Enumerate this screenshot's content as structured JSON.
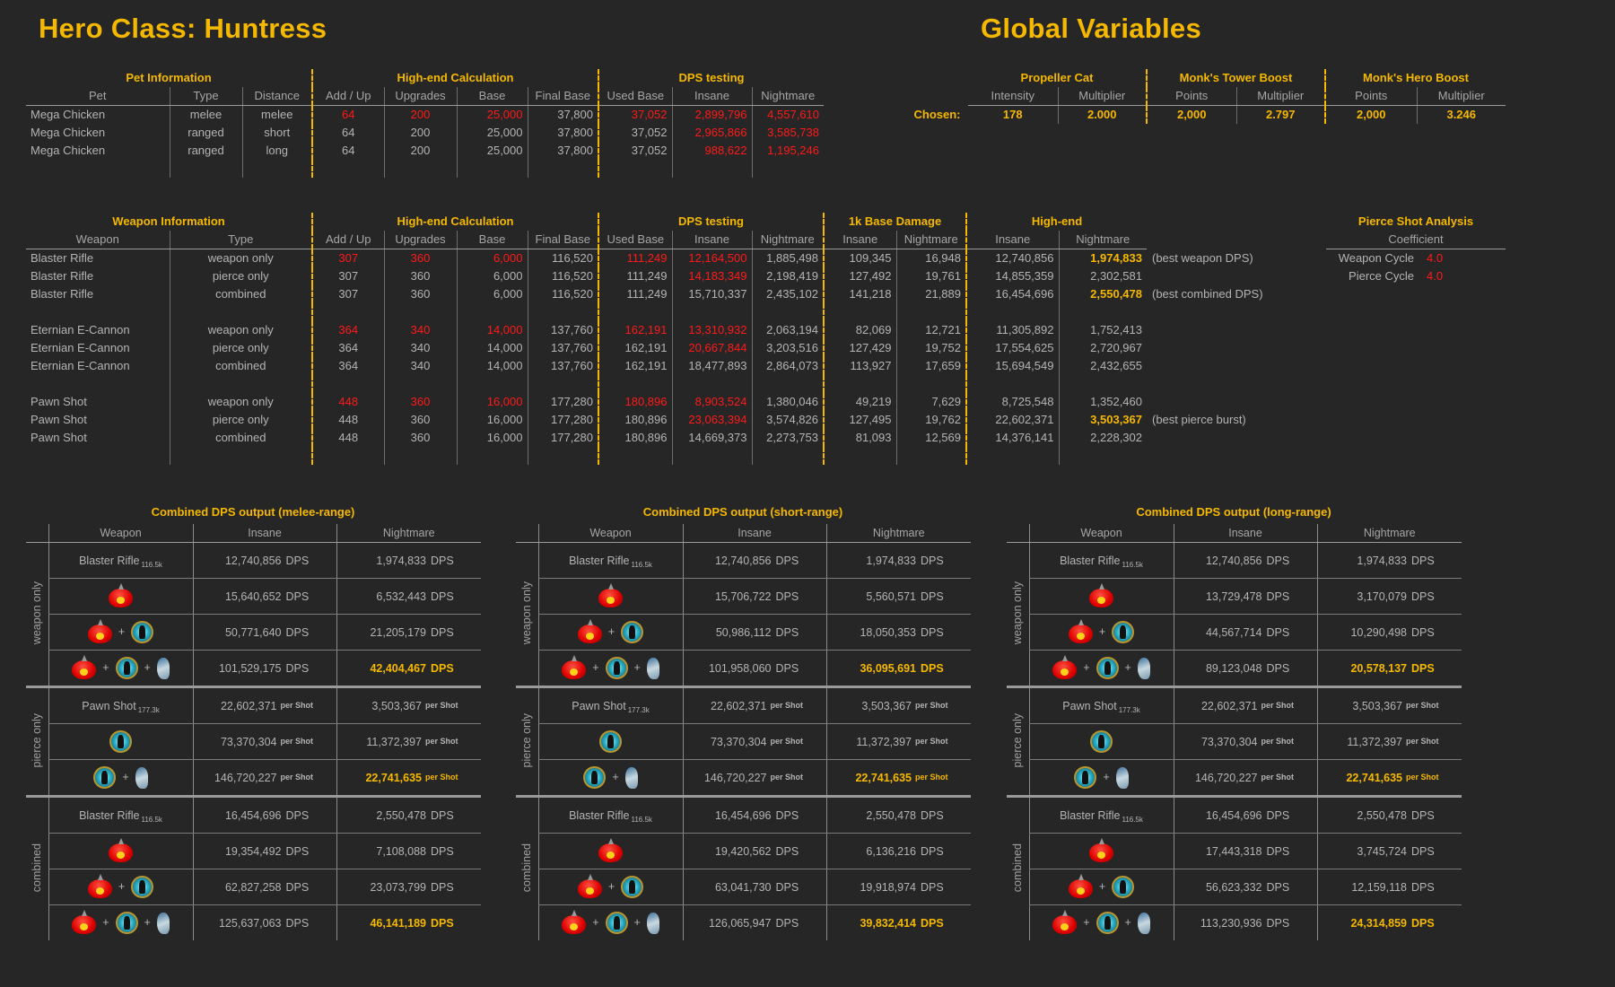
{
  "title_left": "Hero Class: Huntress",
  "title_right": "Global Variables",
  "pet_table": {
    "groups": [
      {
        "label": "Pet Information",
        "span": 3
      },
      {
        "label": "High-end Calculation",
        "span": 4
      },
      {
        "label": "DPS testing",
        "span": 3
      }
    ],
    "columns": [
      "Pet",
      "Type",
      "Distance",
      "Add / Up",
      "Upgrades",
      "Base",
      "Final Base",
      "Used Base",
      "Insane",
      "Nightmare"
    ],
    "rows": [
      {
        "cells": [
          "Mega Chicken",
          "melee",
          "melee",
          "64",
          "200",
          "25,000",
          "37,800",
          "37,052",
          "2,899,796",
          "4,557,610"
        ],
        "red": [
          3,
          4,
          5,
          7,
          8,
          9
        ]
      },
      {
        "cells": [
          "Mega Chicken",
          "ranged",
          "short",
          "64",
          "200",
          "25,000",
          "37,800",
          "37,052",
          "2,965,866",
          "3,585,738"
        ],
        "red": [
          8,
          9
        ]
      },
      {
        "cells": [
          "Mega Chicken",
          "ranged",
          "long",
          "64",
          "200",
          "25,000",
          "37,800",
          "37,052",
          "988,622",
          "1,195,246"
        ],
        "red": [
          8,
          9
        ]
      }
    ]
  },
  "weapon_table": {
    "groups": [
      {
        "label": "Weapon Information",
        "span": 2
      },
      {
        "label": "High-end Calculation",
        "span": 4
      },
      {
        "label": "DPS testing",
        "span": 3
      },
      {
        "label": "1k Base Damage",
        "span": 2
      },
      {
        "label": "High-end",
        "span": 2
      }
    ],
    "columns": [
      "Weapon",
      "Type",
      "Add / Up",
      "Upgrades",
      "Base",
      "Final Base",
      "Used Base",
      "Insane",
      "Nightmare",
      "Insane",
      "Nightmare",
      "Insane",
      "Nightmare"
    ],
    "row_groups": [
      [
        {
          "cells": [
            "Blaster Rifle",
            "weapon only",
            "307",
            "360",
            "6,000",
            "116,520",
            "111,249",
            "12,164,500",
            "1,885,498",
            "109,345",
            "16,948",
            "12,740,856",
            "1,974,833"
          ],
          "red": [
            2,
            3,
            4,
            6,
            7
          ],
          "gold": [
            12
          ],
          "note": "(best weapon DPS)"
        },
        {
          "cells": [
            "Blaster Rifle",
            "pierce only",
            "307",
            "360",
            "6,000",
            "116,520",
            "111,249",
            "14,183,349",
            "2,198,419",
            "127,492",
            "19,761",
            "14,855,359",
            "2,302,581"
          ],
          "red": [
            7
          ],
          "gold": []
        },
        {
          "cells": [
            "Blaster Rifle",
            "combined",
            "307",
            "360",
            "6,000",
            "116,520",
            "111,249",
            "15,710,337",
            "2,435,102",
            "141,218",
            "21,889",
            "16,454,696",
            "2,550,478"
          ],
          "red": [],
          "gold": [
            12
          ],
          "note": "(best combined DPS)"
        }
      ],
      [
        {
          "cells": [
            "Eternian E-Cannon",
            "weapon only",
            "364",
            "340",
            "14,000",
            "137,760",
            "162,191",
            "13,310,932",
            "2,063,194",
            "82,069",
            "12,721",
            "11,305,892",
            "1,752,413"
          ],
          "red": [
            2,
            3,
            4,
            6,
            7
          ],
          "gold": []
        },
        {
          "cells": [
            "Eternian E-Cannon",
            "pierce only",
            "364",
            "340",
            "14,000",
            "137,760",
            "162,191",
            "20,667,844",
            "3,203,516",
            "127,429",
            "19,752",
            "17,554,625",
            "2,720,967"
          ],
          "red": [
            7
          ],
          "gold": []
        },
        {
          "cells": [
            "Eternian E-Cannon",
            "combined",
            "364",
            "340",
            "14,000",
            "137,760",
            "162,191",
            "18,477,893",
            "2,864,073",
            "113,927",
            "17,659",
            "15,694,549",
            "2,432,655"
          ],
          "red": [],
          "gold": []
        }
      ],
      [
        {
          "cells": [
            "Pawn Shot",
            "weapon only",
            "448",
            "360",
            "16,000",
            "177,280",
            "180,896",
            "8,903,524",
            "1,380,046",
            "49,219",
            "7,629",
            "8,725,548",
            "1,352,460"
          ],
          "red": [
            2,
            3,
            4,
            6,
            7
          ],
          "gold": []
        },
        {
          "cells": [
            "Pawn Shot",
            "pierce only",
            "448",
            "360",
            "16,000",
            "177,280",
            "180,896",
            "23,063,394",
            "3,574,826",
            "127,495",
            "19,762",
            "22,602,371",
            "3,503,367"
          ],
          "red": [
            7
          ],
          "gold": [
            12
          ],
          "note": "(best pierce burst)"
        },
        {
          "cells": [
            "Pawn Shot",
            "combined",
            "448",
            "360",
            "16,000",
            "177,280",
            "180,896",
            "14,669,373",
            "2,273,753",
            "81,093",
            "12,569",
            "14,376,141",
            "2,228,302"
          ],
          "red": [],
          "gold": []
        }
      ]
    ]
  },
  "global_table": {
    "groups": [
      {
        "label": "Propeller Cat",
        "columns": [
          "Intensity",
          "Multiplier"
        ]
      },
      {
        "label": "Monk's Tower Boost",
        "columns": [
          "Points",
          "Multiplier"
        ]
      },
      {
        "label": "Monk's Hero Boost",
        "columns": [
          "Points",
          "Multiplier"
        ]
      }
    ],
    "chosen_label": "Chosen:",
    "chosen_values": [
      "178",
      "2.000",
      "2,000",
      "2.797",
      "2,000",
      "3.246"
    ]
  },
  "pierce_analysis": {
    "title": "Pierce Shot Analysis",
    "header": "Coefficient",
    "rows": [
      {
        "label": "Weapon Cycle",
        "value": "4.0"
      },
      {
        "label": "Pierce Cycle",
        "value": "4.0"
      }
    ]
  },
  "plus": "+",
  "dps_tables": [
    {
      "title": "Combined DPS output (melee-range)",
      "headers": [
        "Weapon",
        "Insane",
        "Nightmare"
      ],
      "sections": [
        {
          "label": "weapon only",
          "rows": [
            {
              "weapon": "Blaster Rifle",
              "weapon_sub": "116.5k",
              "insane": "12,740,856",
              "nightmare": "1,974,833",
              "unit": "DPS"
            },
            {
              "icons": [
                "mega-chicken"
              ],
              "insane": "15,640,652",
              "nightmare": "6,532,443",
              "unit": "DPS"
            },
            {
              "icons": [
                "mega-chicken",
                "hero-boost"
              ],
              "insane": "50,771,640",
              "nightmare": "21,205,179",
              "unit": "DPS"
            },
            {
              "icons": [
                "mega-chicken",
                "hero-boost",
                "propeller-cat"
              ],
              "insane": "101,529,175",
              "nightmare": "42,404,467",
              "unit": "DPS",
              "best": true
            }
          ]
        },
        {
          "label": "pierce only",
          "rows": [
            {
              "weapon": "Pawn Shot",
              "weapon_sub": "177.3k",
              "insane": "22,602,371",
              "nightmare": "3,503,367",
              "unit": "per Shot"
            },
            {
              "icons": [
                "hero-boost"
              ],
              "insane": "73,370,304",
              "nightmare": "11,372,397",
              "unit": "per Shot"
            },
            {
              "icons": [
                "hero-boost",
                "propeller-cat"
              ],
              "insane": "146,720,227",
              "nightmare": "22,741,635",
              "unit": "per Shot",
              "best": true
            }
          ]
        },
        {
          "label": "combined",
          "rows": [
            {
              "weapon": "Blaster Rifle",
              "weapon_sub": "116.5k",
              "insane": "16,454,696",
              "nightmare": "2,550,478",
              "unit": "DPS"
            },
            {
              "icons": [
                "mega-chicken"
              ],
              "insane": "19,354,492",
              "nightmare": "7,108,088",
              "unit": "DPS"
            },
            {
              "icons": [
                "mega-chicken",
                "hero-boost"
              ],
              "insane": "62,827,258",
              "nightmare": "23,073,799",
              "unit": "DPS"
            },
            {
              "icons": [
                "mega-chicken",
                "hero-boost",
                "propeller-cat"
              ],
              "insane": "125,637,063",
              "nightmare": "46,141,189",
              "unit": "DPS",
              "best": true
            }
          ]
        }
      ]
    },
    {
      "title": "Combined DPS output (short-range)",
      "headers": [
        "Weapon",
        "Insane",
        "Nightmare"
      ],
      "sections": [
        {
          "label": "weapon only",
          "rows": [
            {
              "weapon": "Blaster Rifle",
              "weapon_sub": "116.5k",
              "insane": "12,740,856",
              "nightmare": "1,974,833",
              "unit": "DPS"
            },
            {
              "icons": [
                "mega-chicken"
              ],
              "insane": "15,706,722",
              "nightmare": "5,560,571",
              "unit": "DPS"
            },
            {
              "icons": [
                "mega-chicken",
                "hero-boost"
              ],
              "insane": "50,986,112",
              "nightmare": "18,050,353",
              "unit": "DPS"
            },
            {
              "icons": [
                "mega-chicken",
                "hero-boost",
                "propeller-cat"
              ],
              "insane": "101,958,060",
              "nightmare": "36,095,691",
              "unit": "DPS",
              "best": true
            }
          ]
        },
        {
          "label": "pierce only",
          "rows": [
            {
              "weapon": "Pawn Shot",
              "weapon_sub": "177.3k",
              "insane": "22,602,371",
              "nightmare": "3,503,367",
              "unit": "per Shot"
            },
            {
              "icons": [
                "hero-boost"
              ],
              "insane": "73,370,304",
              "nightmare": "11,372,397",
              "unit": "per Shot"
            },
            {
              "icons": [
                "hero-boost",
                "propeller-cat"
              ],
              "insane": "146,720,227",
              "nightmare": "22,741,635",
              "unit": "per Shot",
              "best": true
            }
          ]
        },
        {
          "label": "combined",
          "rows": [
            {
              "weapon": "Blaster Rifle",
              "weapon_sub": "116.5k",
              "insane": "16,454,696",
              "nightmare": "2,550,478",
              "unit": "DPS"
            },
            {
              "icons": [
                "mega-chicken"
              ],
              "insane": "19,420,562",
              "nightmare": "6,136,216",
              "unit": "DPS"
            },
            {
              "icons": [
                "mega-chicken",
                "hero-boost"
              ],
              "insane": "63,041,730",
              "nightmare": "19,918,974",
              "unit": "DPS"
            },
            {
              "icons": [
                "mega-chicken",
                "hero-boost",
                "propeller-cat"
              ],
              "insane": "126,065,947",
              "nightmare": "39,832,414",
              "unit": "DPS",
              "best": true
            }
          ]
        }
      ]
    },
    {
      "title": "Combined DPS output (long-range)",
      "headers": [
        "Weapon",
        "Insane",
        "Nightmare"
      ],
      "sections": [
        {
          "label": "weapon only",
          "rows": [
            {
              "weapon": "Blaster Rifle",
              "weapon_sub": "116.5k",
              "insane": "12,740,856",
              "nightmare": "1,974,833",
              "unit": "DPS"
            },
            {
              "icons": [
                "mega-chicken"
              ],
              "insane": "13,729,478",
              "nightmare": "3,170,079",
              "unit": "DPS"
            },
            {
              "icons": [
                "mega-chicken",
                "hero-boost"
              ],
              "insane": "44,567,714",
              "nightmare": "10,290,498",
              "unit": "DPS"
            },
            {
              "icons": [
                "mega-chicken",
                "hero-boost",
                "propeller-cat"
              ],
              "insane": "89,123,048",
              "nightmare": "20,578,137",
              "unit": "DPS",
              "best": true
            }
          ]
        },
        {
          "label": "pierce only",
          "rows": [
            {
              "weapon": "Pawn Shot",
              "weapon_sub": "177.3k",
              "insane": "22,602,371",
              "nightmare": "3,503,367",
              "unit": "per Shot"
            },
            {
              "icons": [
                "hero-boost"
              ],
              "insane": "73,370,304",
              "nightmare": "11,372,397",
              "unit": "per Shot"
            },
            {
              "icons": [
                "hero-boost",
                "propeller-cat"
              ],
              "insane": "146,720,227",
              "nightmare": "22,741,635",
              "unit": "per Shot",
              "best": true
            }
          ]
        },
        {
          "label": "combined",
          "rows": [
            {
              "weapon": "Blaster Rifle",
              "weapon_sub": "116.5k",
              "insane": "16,454,696",
              "nightmare": "2,550,478",
              "unit": "DPS"
            },
            {
              "icons": [
                "mega-chicken"
              ],
              "insane": "17,443,318",
              "nightmare": "3,745,724",
              "unit": "DPS"
            },
            {
              "icons": [
                "mega-chicken",
                "hero-boost"
              ],
              "insane": "56,623,332",
              "nightmare": "12,159,118",
              "unit": "DPS"
            },
            {
              "icons": [
                "mega-chicken",
                "hero-boost",
                "propeller-cat"
              ],
              "insane": "113,230,936",
              "nightmare": "24,314,859",
              "unit": "DPS",
              "best": true
            }
          ]
        }
      ]
    }
  ]
}
